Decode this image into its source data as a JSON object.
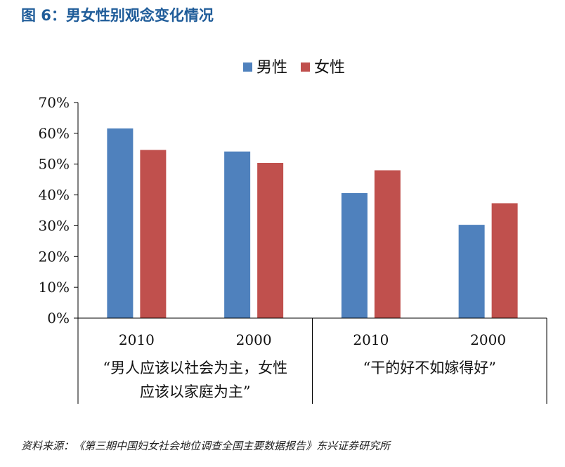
{
  "title": "图 6：男女性别观念变化情况",
  "source": "资料来源：《第三期中国妇女社会地位调查全国主要数据报告》东兴证券研究所",
  "chart_data": {
    "type": "bar",
    "categories": [
      "2010",
      "2000",
      "2010",
      "2000"
    ],
    "groups": [
      {
        "label_lines": [
          "“男人应该以社会为主，女性",
          "应该以家庭为主”"
        ],
        "categories": [
          "2010",
          "2000"
        ]
      },
      {
        "label_lines": [
          "“干的好不如嫁得好”"
        ],
        "categories": [
          "2010",
          "2000"
        ]
      }
    ],
    "series": [
      {
        "name": "男性",
        "color": "#4f81bd",
        "values": [
          61.6,
          54.1,
          40.6,
          30.3
        ]
      },
      {
        "name": "女性",
        "color": "#c0504d",
        "values": [
          54.6,
          50.4,
          48.0,
          37.3
        ]
      }
    ],
    "ylim": [
      0,
      70
    ],
    "yticks": [
      "0%",
      "10%",
      "20%",
      "30%",
      "40%",
      "50%",
      "60%",
      "70%"
    ],
    "legend_position": "top"
  }
}
